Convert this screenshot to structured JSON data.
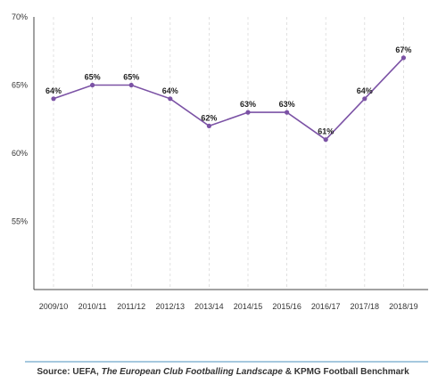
{
  "chart_data": {
    "type": "line",
    "categories": [
      "2009/10",
      "2010/11",
      "2011/12",
      "2012/13",
      "2013/14",
      "2014/15",
      "2015/16",
      "2016/17",
      "2017/18",
      "2018/19"
    ],
    "values": [
      64,
      65,
      65,
      64,
      62,
      63,
      63,
      61,
      64,
      67
    ],
    "data_labels": [
      "64%",
      "65%",
      "65%",
      "64%",
      "62%",
      "63%",
      "63%",
      "61%",
      "64%",
      "67%"
    ],
    "ylim": [
      50,
      70
    ],
    "y_ticks": [
      55,
      60,
      65,
      70
    ],
    "y_tick_labels": [
      "55%",
      "60%",
      "65%",
      "70%"
    ],
    "grid": "vertical dashed",
    "line_color": "#7b52a5",
    "source_color": "#6fa7c9"
  },
  "source": {
    "prefix": "Source: UEFA, ",
    "title": "The European Club Footballing Landscape",
    "suffix": " & KPMG Football Benchmark"
  }
}
